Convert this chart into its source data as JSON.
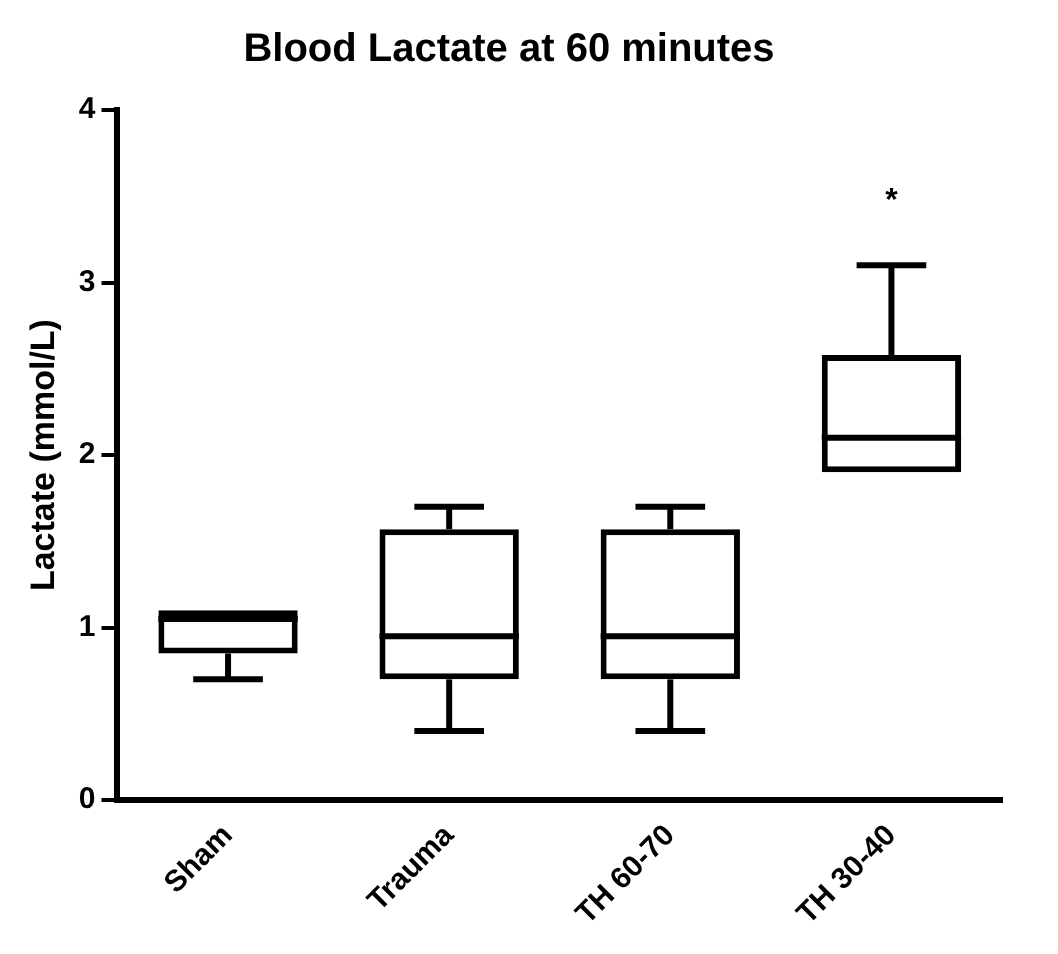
{
  "chart_data": {
    "type": "box",
    "title": "Blood Lactate at 60 minutes",
    "ylabel": "Lactate (mmol/L)",
    "categories": [
      "Sham",
      "Trauma",
      "TH 60-70",
      "TH 30-40"
    ],
    "boxes": [
      {
        "low": 0.7,
        "q1": 0.85,
        "median": 1.05,
        "q3": 1.1,
        "high": 1.1
      },
      {
        "low": 0.4,
        "q1": 0.7,
        "median": 0.95,
        "q3": 1.57,
        "high": 1.7
      },
      {
        "low": 0.4,
        "q1": 0.7,
        "median": 0.95,
        "q3": 1.57,
        "high": 1.7
      },
      {
        "low": 1.9,
        "q1": 1.9,
        "median": 2.1,
        "q3": 2.58,
        "high": 3.1
      }
    ],
    "ylim": [
      0,
      4
    ],
    "yticks": [
      0,
      1,
      2,
      3,
      4
    ],
    "grid": false,
    "legend": false,
    "annotations": [
      "*"
    ]
  }
}
